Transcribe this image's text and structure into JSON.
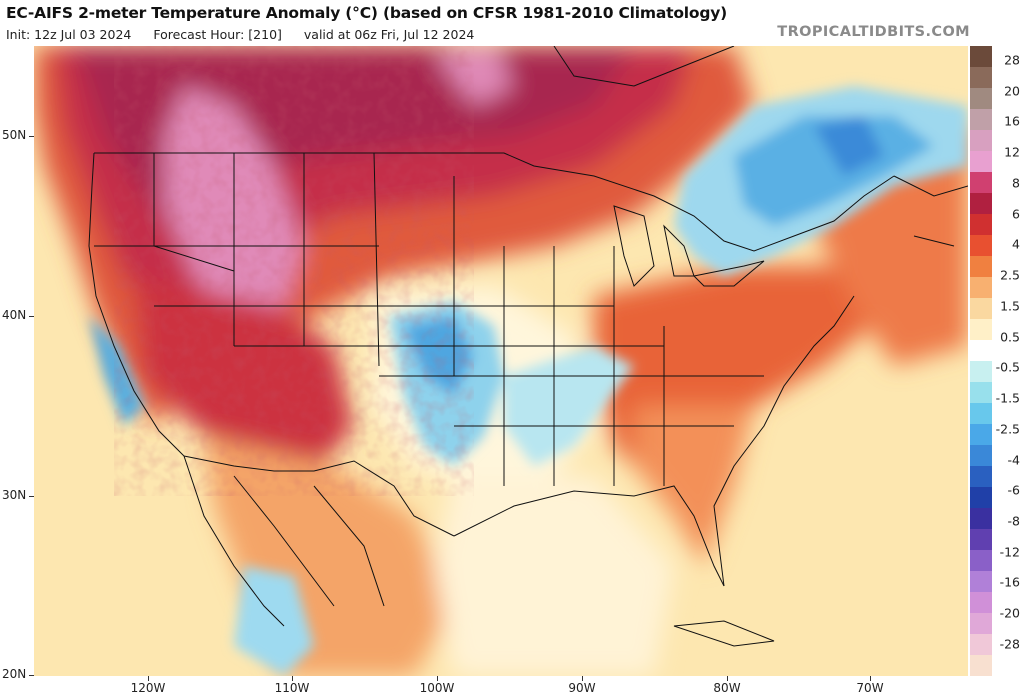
{
  "header": {
    "title": "EC-AIFS 2-meter Temperature Anomaly (°C) (based on CFSR 1981-2010 Climatology)",
    "init": "Init: 12z Jul 03 2024",
    "forecast_hour": "Forecast Hour: [210]",
    "valid": "valid at 06z Fri, Jul 12 2024",
    "site": "TROPICALTIDBITS.COM"
  },
  "axes": {
    "lat_labels": [
      "50N",
      "40N",
      "30N",
      "20N"
    ],
    "lon_labels": [
      "120W",
      "110W",
      "100W",
      "90W",
      "80W",
      "70W"
    ]
  },
  "colorbar": {
    "ticks": [
      "28",
      "20",
      "16",
      "12",
      "8",
      "6",
      "4",
      "2.5",
      "1.5",
      "0.5",
      "-0.5",
      "-1.5",
      "-2.5",
      "-4",
      "-6",
      "-8",
      "-12",
      "-16",
      "-20",
      "-28"
    ],
    "colors": [
      "#6b4a3a",
      "#8a6a5a",
      "#a08a80",
      "#c0a0a8",
      "#d8a0c0",
      "#e8a0d0",
      "#d04070",
      "#b02040",
      "#d03030",
      "#e85030",
      "#f08040",
      "#f8b070",
      "#fad8a0",
      "#fff0c8",
      "#ffffff",
      "#c8f0f0",
      "#98e0ec",
      "#68c8ec",
      "#4aa8e8",
      "#3a88d8",
      "#2a60c0",
      "#2040a8",
      "#3a30a0",
      "#6040b0",
      "#8a60c8",
      "#b080d8",
      "#d090d8",
      "#e0a8d8",
      "#f0c8d8",
      "#f8e0d0"
    ]
  }
}
